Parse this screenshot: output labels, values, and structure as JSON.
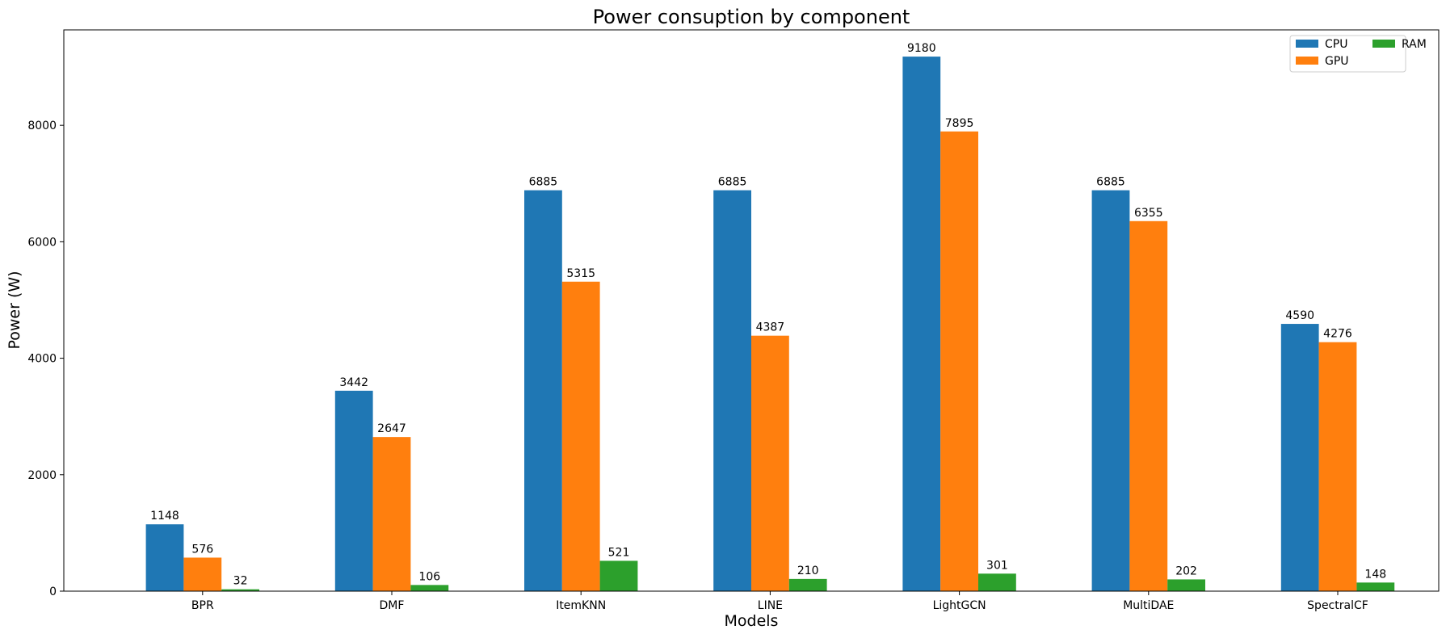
{
  "chart_data": {
    "type": "bar",
    "title": "Power consuption by component",
    "xlabel": "Models",
    "ylabel": "Power (W)",
    "categories": [
      "BPR",
      "DMF",
      "ItemKNN",
      "LINE",
      "LightGCN",
      "MultiDAE",
      "SpectralCF"
    ],
    "series": [
      {
        "name": "CPU",
        "color": "#1f77b4",
        "values": [
          1148,
          3442,
          6885,
          6885,
          9180,
          6885,
          4590
        ]
      },
      {
        "name": "GPU",
        "color": "#ff7f0e",
        "values": [
          576,
          2647,
          5315,
          4387,
          7895,
          6355,
          4276
        ]
      },
      {
        "name": "RAM",
        "color": "#2ca02c",
        "values": [
          32,
          106,
          521,
          210,
          301,
          202,
          148
        ]
      }
    ],
    "ylim": [
      0,
      9639
    ],
    "yticks": [
      0,
      2000,
      4000,
      6000,
      8000
    ],
    "grid": false,
    "legend": "top-right"
  }
}
